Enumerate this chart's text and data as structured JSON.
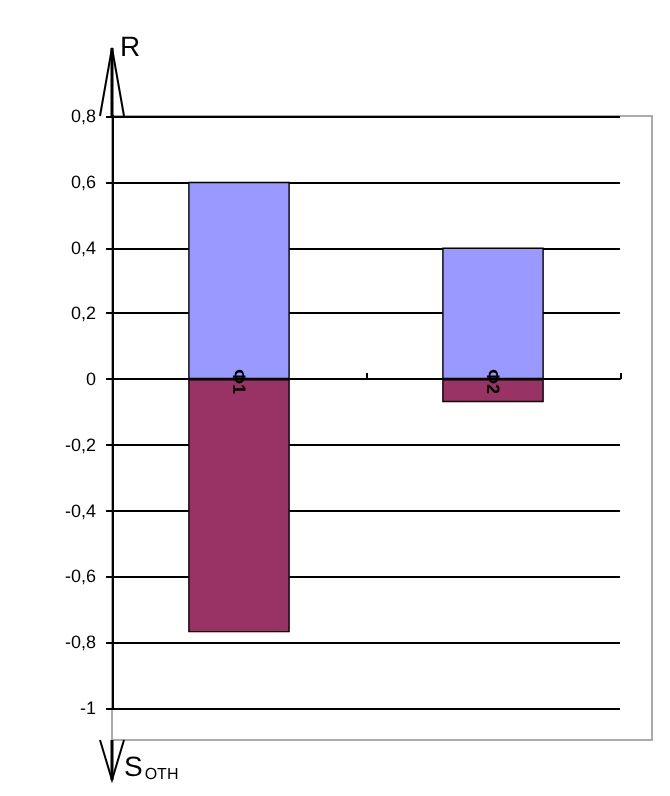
{
  "chart_data": {
    "type": "bar",
    "stacked": true,
    "categories": [
      "Φ1",
      "Φ2"
    ],
    "series": [
      {
        "color": "#9999ff",
        "values": [
          0.6,
          0.4
        ]
      },
      {
        "color": "#993366",
        "values": [
          -0.77,
          -0.07
        ]
      }
    ],
    "ylabel": "R",
    "annotations": [
      "S$_{ОТН}$"
    ],
    "ylim": [
      -1,
      0.8
    ],
    "yticks": [
      {
        "value": -1,
        "label": "-1"
      },
      {
        "value": -0.8,
        "label": "-0,8"
      },
      {
        "value": -0.6,
        "label": "-0,6"
      },
      {
        "value": -0.4,
        "label": "-0,4"
      },
      {
        "value": -0.2,
        "label": "-0,2"
      },
      {
        "value": 0,
        "label": "0"
      },
      {
        "value": 0.2,
        "label": "0,2"
      },
      {
        "value": 0.4,
        "label": "0,4"
      },
      {
        "value": 0.6,
        "label": "0,6"
      },
      {
        "value": 0.8,
        "label": "0,8"
      }
    ],
    "grid": "y"
  }
}
